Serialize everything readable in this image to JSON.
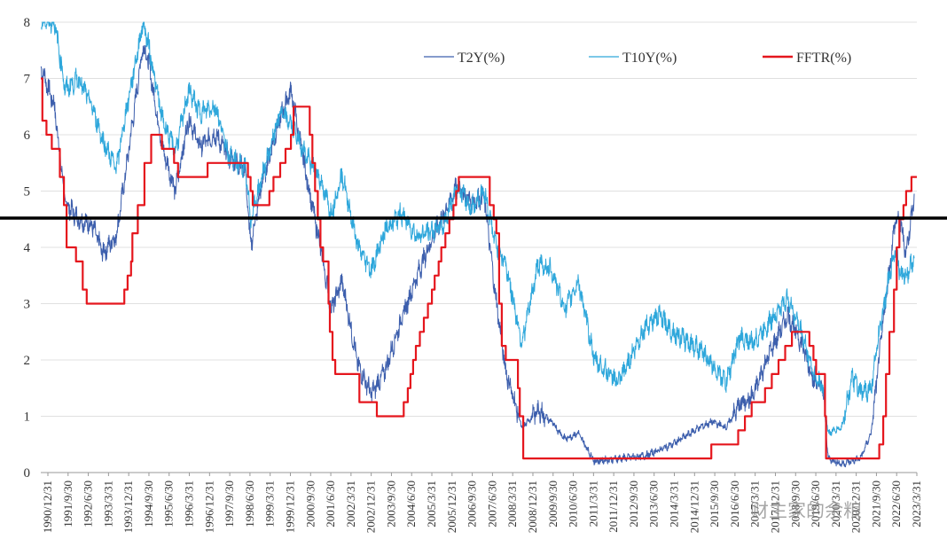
{
  "watermark": "财主家的余粮",
  "colors": {
    "t2y": "#3d5fad",
    "t10y": "#2ea7db",
    "fftr": "#e5161d",
    "threshold": "#000000",
    "grid": "#e0e0e0",
    "axis": "#999999"
  },
  "chart_data": {
    "type": "line",
    "title": "",
    "xlabel": "",
    "ylabel": "",
    "xlim": [
      1990.99,
      2023.6
    ],
    "ylim": [
      0,
      8
    ],
    "grid": "horizontal",
    "legend_position": "top-right",
    "x_tick_labels": [
      "1990/12/31",
      "1991/9/30",
      "1992/6/30",
      "1993/3/31",
      "1993/12/31",
      "1994/9/30",
      "1995/6/30",
      "1996/3/31",
      "1996/12/31",
      "1997/9/30",
      "1998/6/30",
      "1999/3/31",
      "1999/12/31",
      "2000/9/30",
      "2001/6/30",
      "2002/3/31",
      "2002/12/31",
      "2003/9/30",
      "2004/6/30",
      "2005/3/31",
      "2005/12/31",
      "2006/9/30",
      "2007/6/30",
      "2008/3/31",
      "2008/12/31",
      "2009/9/30",
      "2010/6/30",
      "2011/3/31",
      "2011/12/31",
      "2012/9/30",
      "2013/6/30",
      "2014/3/31",
      "2014/12/31",
      "2015/9/30",
      "2016/6/30",
      "2017/3/31",
      "2017/12/31",
      "2018/9/30",
      "2019/6/30",
      "2020/3/31",
      "2020/12/31",
      "2021/9/30",
      "2022/6/30",
      "2023/3/31"
    ],
    "y_ticks": [
      0,
      1,
      2,
      3,
      4,
      5,
      6,
      7,
      8
    ],
    "threshold_line": 4.52,
    "series": [
      {
        "name": "T2Y(%)",
        "points": [
          [
            1991.0,
            7.2
          ],
          [
            1991.5,
            6.5
          ],
          [
            1991.9,
            4.8
          ],
          [
            1992.4,
            4.5
          ],
          [
            1992.9,
            4.4
          ],
          [
            1993.3,
            3.9
          ],
          [
            1993.8,
            4.2
          ],
          [
            1994.2,
            5.5
          ],
          [
            1994.8,
            7.6
          ],
          [
            1995.0,
            7.3
          ],
          [
            1995.5,
            5.8
          ],
          [
            1996.0,
            5.0
          ],
          [
            1996.5,
            6.3
          ],
          [
            1996.9,
            5.8
          ],
          [
            1997.5,
            6.0
          ],
          [
            1998.0,
            5.6
          ],
          [
            1998.6,
            5.4
          ],
          [
            1998.8,
            4.0
          ],
          [
            1999.2,
            5.1
          ],
          [
            1999.9,
            6.3
          ],
          [
            2000.3,
            6.8
          ],
          [
            2000.9,
            5.2
          ],
          [
            2001.4,
            4.0
          ],
          [
            2001.8,
            2.9
          ],
          [
            2002.2,
            3.4
          ],
          [
            2002.8,
            1.9
          ],
          [
            2003.3,
            1.4
          ],
          [
            2003.8,
            1.8
          ],
          [
            2004.4,
            2.7
          ],
          [
            2005.0,
            3.5
          ],
          [
            2005.6,
            4.2
          ],
          [
            2006.0,
            4.6
          ],
          [
            2006.5,
            5.1
          ],
          [
            2007.0,
            4.8
          ],
          [
            2007.5,
            4.9
          ],
          [
            2007.9,
            3.2
          ],
          [
            2008.3,
            1.8
          ],
          [
            2008.9,
            0.8
          ],
          [
            2009.5,
            1.1
          ],
          [
            2010.0,
            0.9
          ],
          [
            2010.5,
            0.6
          ],
          [
            2011.0,
            0.7
          ],
          [
            2011.6,
            0.2
          ],
          [
            2012.5,
            0.25
          ],
          [
            2013.5,
            0.3
          ],
          [
            2014.5,
            0.5
          ],
          [
            2015.5,
            0.8
          ],
          [
            2016.0,
            0.9
          ],
          [
            2016.5,
            0.8
          ],
          [
            2017.0,
            1.2
          ],
          [
            2017.5,
            1.35
          ],
          [
            2018.0,
            2.0
          ],
          [
            2018.8,
            2.8
          ],
          [
            2019.3,
            2.3
          ],
          [
            2019.8,
            1.6
          ],
          [
            2020.1,
            1.5
          ],
          [
            2020.3,
            0.25
          ],
          [
            2020.8,
            0.15
          ],
          [
            2021.5,
            0.25
          ],
          [
            2021.9,
            0.7
          ],
          [
            2022.3,
            2.5
          ],
          [
            2022.8,
            4.5
          ],
          [
            2023.0,
            4.4
          ],
          [
            2023.2,
            3.9
          ],
          [
            2023.5,
            4.9
          ]
        ]
      },
      {
        "name": "T10Y(%)",
        "points": [
          [
            1991.0,
            8.0
          ],
          [
            1991.5,
            8.0
          ],
          [
            1991.9,
            6.8
          ],
          [
            1992.4,
            7.0
          ],
          [
            1992.9,
            6.5
          ],
          [
            1993.3,
            5.9
          ],
          [
            1993.8,
            5.4
          ],
          [
            1994.2,
            6.5
          ],
          [
            1994.8,
            8.0
          ],
          [
            1995.0,
            7.6
          ],
          [
            1995.5,
            6.3
          ],
          [
            1996.0,
            5.7
          ],
          [
            1996.5,
            6.8
          ],
          [
            1996.9,
            6.4
          ],
          [
            1997.5,
            6.5
          ],
          [
            1998.0,
            5.6
          ],
          [
            1998.6,
            5.4
          ],
          [
            1998.8,
            4.5
          ],
          [
            1999.2,
            5.2
          ],
          [
            1999.9,
            6.4
          ],
          [
            2000.3,
            6.2
          ],
          [
            2000.9,
            5.6
          ],
          [
            2001.4,
            5.2
          ],
          [
            2001.8,
            4.6
          ],
          [
            2002.2,
            5.3
          ],
          [
            2002.8,
            4.0
          ],
          [
            2003.3,
            3.6
          ],
          [
            2003.8,
            4.3
          ],
          [
            2004.4,
            4.6
          ],
          [
            2005.0,
            4.2
          ],
          [
            2005.6,
            4.3
          ],
          [
            2006.0,
            4.4
          ],
          [
            2006.5,
            5.1
          ],
          [
            2007.0,
            4.7
          ],
          [
            2007.5,
            5.0
          ],
          [
            2007.9,
            4.1
          ],
          [
            2008.3,
            3.7
          ],
          [
            2008.9,
            2.3
          ],
          [
            2009.5,
            3.7
          ],
          [
            2010.0,
            3.6
          ],
          [
            2010.5,
            2.9
          ],
          [
            2011.0,
            3.4
          ],
          [
            2011.6,
            2.0
          ],
          [
            2012.5,
            1.6
          ],
          [
            2013.5,
            2.6
          ],
          [
            2014.0,
            2.8
          ],
          [
            2014.5,
            2.5
          ],
          [
            2015.5,
            2.2
          ],
          [
            2016.0,
            1.9
          ],
          [
            2016.5,
            1.6
          ],
          [
            2017.0,
            2.4
          ],
          [
            2017.5,
            2.3
          ],
          [
            2018.0,
            2.6
          ],
          [
            2018.8,
            3.1
          ],
          [
            2019.3,
            2.5
          ],
          [
            2019.8,
            1.7
          ],
          [
            2020.1,
            1.5
          ],
          [
            2020.3,
            0.7
          ],
          [
            2020.8,
            0.8
          ],
          [
            2021.2,
            1.7
          ],
          [
            2021.5,
            1.4
          ],
          [
            2021.9,
            1.5
          ],
          [
            2022.3,
            2.8
          ],
          [
            2022.8,
            4.0
          ],
          [
            2023.0,
            3.5
          ],
          [
            2023.2,
            3.5
          ],
          [
            2023.5,
            3.8
          ]
        ]
      },
      {
        "name": "FFTR(%)",
        "step": true,
        "points": [
          [
            1990.99,
            7.0
          ],
          [
            1991.05,
            6.25
          ],
          [
            1991.2,
            6.0
          ],
          [
            1991.4,
            5.75
          ],
          [
            1991.7,
            5.25
          ],
          [
            1991.85,
            4.75
          ],
          [
            1991.95,
            4.0
          ],
          [
            1992.3,
            3.75
          ],
          [
            1992.55,
            3.25
          ],
          [
            1992.7,
            3.0
          ],
          [
            1994.1,
            3.25
          ],
          [
            1994.22,
            3.5
          ],
          [
            1994.35,
            3.75
          ],
          [
            1994.4,
            4.25
          ],
          [
            1994.6,
            4.75
          ],
          [
            1994.85,
            5.5
          ],
          [
            1995.1,
            6.0
          ],
          [
            1995.5,
            5.75
          ],
          [
            1995.95,
            5.5
          ],
          [
            1996.1,
            5.25
          ],
          [
            1997.2,
            5.5
          ],
          [
            1998.7,
            5.25
          ],
          [
            1998.8,
            5.0
          ],
          [
            1998.88,
            4.75
          ],
          [
            1999.5,
            5.0
          ],
          [
            1999.65,
            5.25
          ],
          [
            1999.9,
            5.5
          ],
          [
            2000.1,
            5.75
          ],
          [
            2000.3,
            6.0
          ],
          [
            2000.4,
            6.5
          ],
          [
            2001.0,
            6.0
          ],
          [
            2001.1,
            5.5
          ],
          [
            2001.2,
            5.0
          ],
          [
            2001.3,
            4.5
          ],
          [
            2001.4,
            4.0
          ],
          [
            2001.5,
            3.75
          ],
          [
            2001.7,
            3.0
          ],
          [
            2001.75,
            2.5
          ],
          [
            2001.85,
            2.0
          ],
          [
            2001.95,
            1.75
          ],
          [
            2002.85,
            1.25
          ],
          [
            2003.5,
            1.0
          ],
          [
            2004.5,
            1.25
          ],
          [
            2004.65,
            1.5
          ],
          [
            2004.75,
            1.75
          ],
          [
            2004.85,
            2.0
          ],
          [
            2004.95,
            2.25
          ],
          [
            2005.1,
            2.5
          ],
          [
            2005.25,
            2.75
          ],
          [
            2005.4,
            3.0
          ],
          [
            2005.55,
            3.25
          ],
          [
            2005.65,
            3.5
          ],
          [
            2005.8,
            3.75
          ],
          [
            2005.9,
            4.0
          ],
          [
            2006.05,
            4.25
          ],
          [
            2006.2,
            4.5
          ],
          [
            2006.35,
            4.75
          ],
          [
            2006.45,
            5.0
          ],
          [
            2006.55,
            5.25
          ],
          [
            2007.7,
            4.75
          ],
          [
            2007.85,
            4.5
          ],
          [
            2007.95,
            4.25
          ],
          [
            2008.05,
            3.0
          ],
          [
            2008.15,
            2.25
          ],
          [
            2008.3,
            2.0
          ],
          [
            2008.75,
            1.5
          ],
          [
            2008.82,
            1.0
          ],
          [
            2008.95,
            0.25
          ],
          [
            2015.95,
            0.5
          ],
          [
            2016.95,
            0.75
          ],
          [
            2017.2,
            1.0
          ],
          [
            2017.45,
            1.25
          ],
          [
            2017.95,
            1.5
          ],
          [
            2018.2,
            1.75
          ],
          [
            2018.45,
            2.0
          ],
          [
            2018.7,
            2.25
          ],
          [
            2018.95,
            2.5
          ],
          [
            2019.6,
            2.25
          ],
          [
            2019.75,
            2.0
          ],
          [
            2019.85,
            1.75
          ],
          [
            2020.18,
            1.0
          ],
          [
            2020.22,
            0.25
          ],
          [
            2022.2,
            0.5
          ],
          [
            2022.35,
            1.0
          ],
          [
            2022.45,
            1.75
          ],
          [
            2022.58,
            2.5
          ],
          [
            2022.75,
            3.25
          ],
          [
            2022.85,
            4.0
          ],
          [
            2022.95,
            4.5
          ],
          [
            2023.1,
            4.75
          ],
          [
            2023.2,
            5.0
          ],
          [
            2023.4,
            5.25
          ],
          [
            2023.6,
            5.25
          ]
        ]
      }
    ]
  }
}
